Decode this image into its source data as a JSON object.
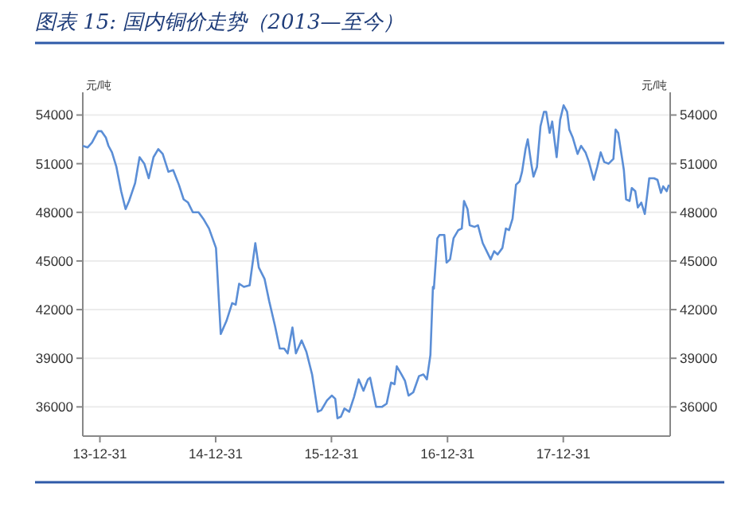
{
  "chart_data": {
    "type": "line",
    "title": "图表 15:  国内铜价走势（2013—至今）",
    "ylabel": "元/吨",
    "y2label": "元/吨",
    "xlim": [
      "2013-11-07",
      "2018-12-03"
    ],
    "xticks": [
      {
        "value": "2013-12-31",
        "label": "13-12-31"
      },
      {
        "value": "2014-12-31",
        "label": "14-12-31"
      },
      {
        "value": "2015-12-31",
        "label": "15-12-31"
      },
      {
        "value": "2016-12-31",
        "label": "16-12-31"
      },
      {
        "value": "2017-12-31",
        "label": "17-12-31"
      }
    ],
    "ylim": [
      34200,
      55400
    ],
    "yticks": [
      36000,
      39000,
      42000,
      45000,
      48000,
      51000,
      54000
    ],
    "y2lim": [
      34200,
      55400
    ],
    "y2ticks": [
      36000,
      39000,
      42000,
      45000,
      48000,
      51000,
      54000
    ],
    "grid": "y",
    "line_style": "solid",
    "series": [
      {
        "color": "#5b8ed6",
        "x": [
          "2013-11-07",
          "2013-11-22",
          "2013-12-06",
          "2013-12-25",
          "2014-01-05",
          "2014-01-19",
          "2014-01-27",
          "2014-02-07",
          "2014-02-21",
          "2014-03-08",
          "2014-03-22",
          "2014-04-02",
          "2014-04-21",
          "2014-05-05",
          "2014-05-20",
          "2014-06-03",
          "2014-06-18",
          "2014-07-03",
          "2014-07-17",
          "2014-08-04",
          "2014-08-19",
          "2014-09-06",
          "2014-09-21",
          "2014-10-05",
          "2014-10-20",
          "2014-11-07",
          "2014-11-22",
          "2014-12-10",
          "2015-01-01",
          "2015-01-16",
          "2015-02-03",
          "2015-02-21",
          "2015-03-04",
          "2015-03-15",
          "2015-03-30",
          "2015-04-17",
          "2015-05-05",
          "2015-05-16",
          "2015-06-03",
          "2015-06-18",
          "2015-07-06",
          "2015-07-21",
          "2015-08-04",
          "2015-08-15",
          "2015-08-30",
          "2015-09-10",
          "2015-09-28",
          "2015-10-13",
          "2015-10-31",
          "2015-11-18",
          "2015-11-29",
          "2015-12-17",
          "2016-01-01",
          "2016-01-12",
          "2016-01-19",
          "2016-01-30",
          "2016-02-10",
          "2016-02-25",
          "2016-03-11",
          "2016-03-26",
          "2016-04-10",
          "2016-04-24",
          "2016-05-01",
          "2016-05-20",
          "2016-06-07",
          "2016-06-22",
          "2016-07-06",
          "2016-07-17",
          "2016-07-24",
          "2016-08-08",
          "2016-08-19",
          "2016-08-30",
          "2016-09-14",
          "2016-10-02",
          "2016-10-16",
          "2016-10-27",
          "2016-11-07",
          "2016-11-15",
          "2016-11-18",
          "2016-11-29",
          "2016-12-06",
          "2016-12-21",
          "2016-12-28",
          "2017-01-08",
          "2017-01-19",
          "2017-02-03",
          "2017-02-14",
          "2017-02-21",
          "2017-03-04",
          "2017-03-11",
          "2017-03-26",
          "2017-04-06",
          "2017-04-21",
          "2017-05-01",
          "2017-05-16",
          "2017-05-27",
          "2017-06-07",
          "2017-06-22",
          "2017-07-03",
          "2017-07-13",
          "2017-07-24",
          "2017-08-04",
          "2017-08-15",
          "2017-08-23",
          "2017-09-03",
          "2017-09-10",
          "2017-09-21",
          "2017-09-28",
          "2017-10-09",
          "2017-10-20",
          "2017-10-31",
          "2017-11-07",
          "2017-11-18",
          "2017-11-26",
          "2017-12-10",
          "2017-12-21",
          "2018-01-01",
          "2018-01-12",
          "2018-01-19",
          "2018-01-30",
          "2018-02-14",
          "2018-02-25",
          "2018-03-11",
          "2018-03-22",
          "2018-04-06",
          "2018-04-17",
          "2018-04-28",
          "2018-05-09",
          "2018-05-23",
          "2018-06-07",
          "2018-06-14",
          "2018-06-22",
          "2018-07-03",
          "2018-07-10",
          "2018-07-17",
          "2018-07-28",
          "2018-08-04",
          "2018-08-15",
          "2018-08-23",
          "2018-09-03",
          "2018-09-14",
          "2018-09-28",
          "2018-10-13",
          "2018-10-24",
          "2018-11-04",
          "2018-11-11",
          "2018-11-22",
          "2018-11-29"
        ],
        "values": [
          52100,
          52000,
          52300,
          53000,
          53000,
          52600,
          52100,
          51700,
          50800,
          49300,
          48200,
          48700,
          49800,
          51400,
          51000,
          50100,
          51400,
          51900,
          51600,
          50500,
          50600,
          49700,
          48800,
          48600,
          48000,
          48000,
          47600,
          47000,
          45800,
          40500,
          41300,
          42400,
          42300,
          43600,
          43400,
          43500,
          46100,
          44600,
          43900,
          42500,
          41000,
          39600,
          39600,
          39300,
          40900,
          39300,
          40100,
          39400,
          38000,
          35700,
          35800,
          36400,
          36700,
          36500,
          35300,
          35400,
          35900,
          35700,
          36600,
          37700,
          37000,
          37700,
          37800,
          36000,
          36000,
          36200,
          37500,
          37400,
          38500,
          38000,
          37600,
          36700,
          36900,
          37900,
          38000,
          37700,
          39200,
          43400,
          43300,
          46400,
          46600,
          46600,
          44900,
          45100,
          46400,
          46900,
          47000,
          48700,
          48200,
          47200,
          47100,
          47200,
          46100,
          45700,
          45100,
          45600,
          45400,
          45800,
          47000,
          46900,
          47600,
          49700,
          49900,
          50500,
          51900,
          52500,
          51000,
          50200,
          50800,
          53300,
          54200,
          54200,
          52900,
          53600,
          51400,
          53700,
          54600,
          54200,
          53100,
          52600,
          51600,
          52100,
          51700,
          51100,
          50000,
          50800,
          51700,
          51100,
          51000,
          51300,
          53100,
          52900,
          51500,
          50600,
          48800,
          48700,
          49500,
          49300,
          48300,
          48600,
          47900,
          50100,
          50100,
          50000,
          49200,
          49600,
          49300,
          49700
        ]
      }
    ]
  }
}
